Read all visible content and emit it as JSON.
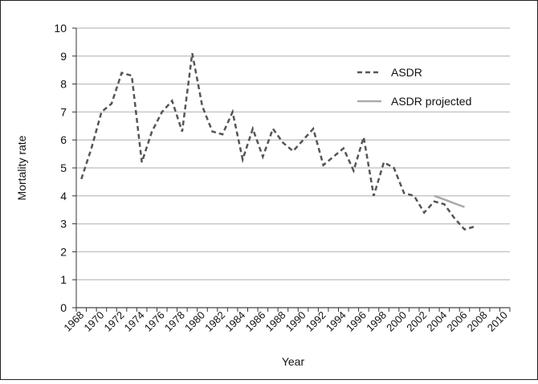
{
  "chart_data": {
    "type": "line",
    "x_label": "Year",
    "y_label": "Mortality rate",
    "categories": [
      "1968",
      null,
      "1970",
      null,
      "1972",
      null,
      "1974",
      null,
      "1976",
      null,
      "1978",
      null,
      "1980",
      null,
      "1982",
      null,
      "1984",
      null,
      "1986",
      null,
      "1988",
      null,
      "1990",
      null,
      "1992",
      null,
      "1994",
      null,
      "1996",
      null,
      "1998",
      null,
      "2000",
      null,
      "2002",
      null,
      "2004",
      null,
      "2006",
      null,
      "2008",
      null,
      "2010"
    ],
    "series": [
      {
        "name": "ASDR",
        "color": "#555555",
        "dashed": true,
        "values": [
          4.6,
          5.7,
          7.0,
          7.3,
          8.4,
          8.3,
          5.2,
          6.3,
          7.0,
          7.4,
          6.3,
          9.1,
          7.2,
          6.3,
          6.2,
          7.0,
          5.3,
          6.4,
          5.4,
          6.4,
          5.9,
          5.6,
          6.0,
          6.4,
          5.1,
          5.4,
          5.7,
          4.9,
          6.1,
          4.0,
          5.2,
          5.0,
          4.1,
          4.0,
          3.4,
          3.8,
          3.7,
          3.2,
          2.8,
          2.9,
          null,
          null,
          null
        ]
      },
      {
        "name": "ASDR projected",
        "color": "#aaaaaa",
        "dashed": false,
        "values": [
          null,
          null,
          null,
          null,
          null,
          null,
          null,
          null,
          null,
          null,
          null,
          null,
          null,
          null,
          null,
          null,
          null,
          null,
          null,
          null,
          null,
          null,
          null,
          null,
          null,
          null,
          null,
          null,
          null,
          null,
          null,
          null,
          null,
          null,
          null,
          4.0,
          3.87,
          3.73,
          3.6,
          null,
          null,
          null,
          null
        ]
      }
    ],
    "ylim": [
      0,
      10
    ],
    "yticks": [
      0,
      1,
      2,
      3,
      4,
      5,
      6,
      7,
      8,
      9,
      10
    ],
    "grid": true,
    "legend": "top-right"
  }
}
